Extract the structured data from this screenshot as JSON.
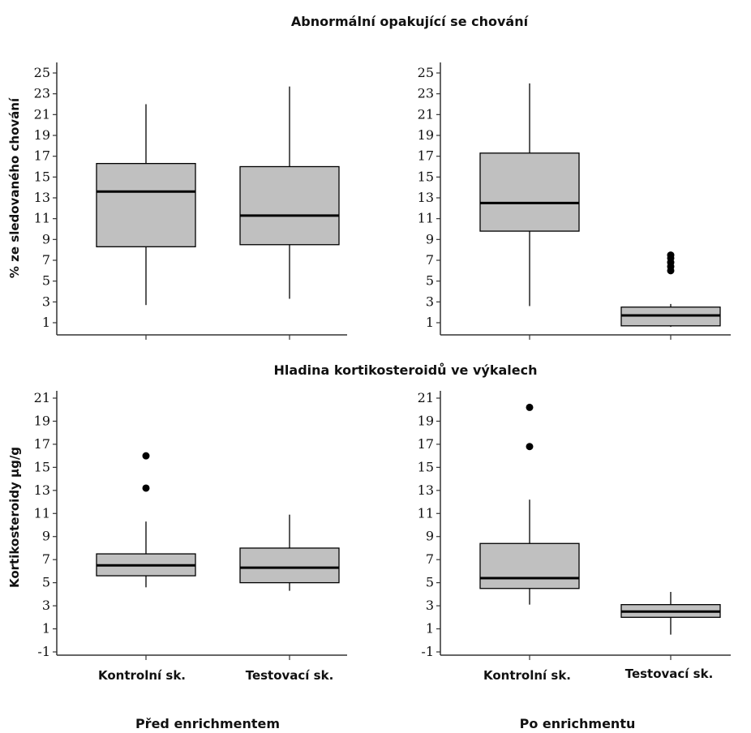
{
  "titles": {
    "top": "Abnormální opakující se chování",
    "bottom": "Hladina kortikosteroidů ve výkalech"
  },
  "ylabels": {
    "top": "% ze sledovaného chování",
    "bottom": "Kortikosteroidy µg/g"
  },
  "categories": [
    "Kontrolní sk.",
    "Testovací sk."
  ],
  "groups": [
    "Před enrichmentem",
    "Po enrichmentu"
  ],
  "colors": {
    "box_fill": "#c0c0c0",
    "stroke": "#000000",
    "axis": "#333333"
  },
  "chart_data": [
    {
      "type": "boxplot",
      "row": "top",
      "column": "Před enrichmentem",
      "ylim": [
        0,
        26
      ],
      "yticks": [
        1,
        3,
        5,
        7,
        9,
        11,
        13,
        15,
        17,
        19,
        21,
        23,
        25
      ],
      "categories": [
        "Kontrolní sk.",
        "Testovací sk."
      ],
      "boxes": [
        {
          "category": "Kontrolní sk.",
          "min": 2.7,
          "q1": 8.3,
          "median": 13.6,
          "q3": 16.3,
          "max": 22.0,
          "outliers": []
        },
        {
          "category": "Testovací sk.",
          "min": 3.3,
          "q1": 8.5,
          "median": 11.3,
          "q3": 16.0,
          "max": 23.7,
          "outliers": []
        }
      ]
    },
    {
      "type": "boxplot",
      "row": "top",
      "column": "Po enrichmentu",
      "ylim": [
        0,
        26
      ],
      "yticks": [
        1,
        3,
        5,
        7,
        9,
        11,
        13,
        15,
        17,
        19,
        21,
        23,
        25
      ],
      "categories": [
        "Kontrolní sk.",
        "Testovací sk."
      ],
      "boxes": [
        {
          "category": "Kontrolní sk.",
          "min": 2.6,
          "q1": 9.8,
          "median": 12.5,
          "q3": 17.3,
          "max": 24.0,
          "outliers": []
        },
        {
          "category": "Testovací sk.",
          "min": 0.6,
          "q1": 0.7,
          "median": 1.7,
          "q3": 2.5,
          "max": 2.8,
          "outliers": [
            6.0,
            6.4,
            6.8,
            7.2,
            7.5
          ]
        }
      ]
    },
    {
      "type": "boxplot",
      "row": "bottom",
      "column": "Před enrichmentem",
      "ylim": [
        -1,
        21
      ],
      "yticks": [
        -1,
        1,
        3,
        5,
        7,
        9,
        11,
        13,
        15,
        17,
        19,
        21
      ],
      "categories": [
        "Kontrolní sk.",
        "Testovací sk."
      ],
      "boxes": [
        {
          "category": "Kontrolní sk.",
          "min": 4.6,
          "q1": 5.6,
          "median": 6.5,
          "q3": 7.5,
          "max": 10.3,
          "outliers": [
            13.2,
            16.0
          ]
        },
        {
          "category": "Testovací sk.",
          "min": 4.3,
          "q1": 5.0,
          "median": 6.3,
          "q3": 8.0,
          "max": 10.9,
          "outliers": []
        }
      ]
    },
    {
      "type": "boxplot",
      "row": "bottom",
      "column": "Po enrichmentu",
      "ylim": [
        -1,
        21
      ],
      "yticks": [
        -1,
        1,
        3,
        5,
        7,
        9,
        11,
        13,
        15,
        17,
        19,
        21
      ],
      "categories": [
        "Kontrolní sk.",
        "Testovací sk."
      ],
      "boxes": [
        {
          "category": "Kontrolní sk.",
          "min": 3.1,
          "q1": 4.5,
          "median": 5.4,
          "q3": 8.4,
          "max": 12.2,
          "outliers": [
            16.8,
            20.2
          ]
        },
        {
          "category": "Testovací sk.",
          "min": 0.5,
          "q1": 2.0,
          "median": 2.5,
          "q3": 3.1,
          "max": 4.2,
          "outliers": []
        }
      ]
    }
  ]
}
